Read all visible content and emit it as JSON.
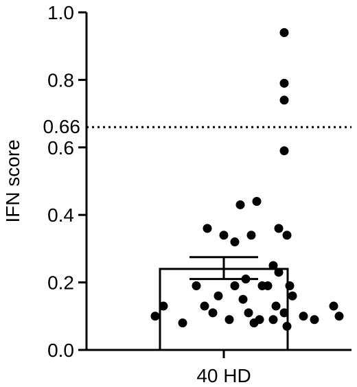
{
  "chart_data": {
    "type": "bar",
    "ylabel": "IFN score",
    "categories": [
      "40 HD"
    ],
    "ylim": [
      0,
      1.0
    ],
    "yticks": [
      "0.0",
      "0.2",
      "0.4",
      "0.6",
      "0.8",
      "1.0"
    ],
    "bar": {
      "mean": 0.24,
      "sem_low": 0.21,
      "sem_high": 0.275
    },
    "threshold": {
      "value": 0.66,
      "label": "0.66",
      "style": "dotted"
    },
    "points": [
      {
        "x": -0.25,
        "y": 0.1
      },
      {
        "x": -0.22,
        "y": 0.13
      },
      {
        "x": -0.15,
        "y": 0.08
      },
      {
        "x": -0.1,
        "y": 0.19
      },
      {
        "x": -0.07,
        "y": 0.13
      },
      {
        "x": -0.04,
        "y": 0.11
      },
      {
        "x": -0.02,
        "y": 0.16
      },
      {
        "x": 0.02,
        "y": 0.09
      },
      {
        "x": 0.04,
        "y": 0.19
      },
      {
        "x": 0.07,
        "y": 0.15
      },
      {
        "x": 0.09,
        "y": 0.11
      },
      {
        "x": 0.11,
        "y": 0.08
      },
      {
        "x": 0.14,
        "y": 0.19
      },
      {
        "x": -0.06,
        "y": 0.36
      },
      {
        "x": 0.0,
        "y": 0.34
      },
      {
        "x": 0.04,
        "y": 0.32
      },
      {
        "x": 0.06,
        "y": 0.43
      },
      {
        "x": 0.12,
        "y": 0.44
      },
      {
        "x": 0.08,
        "y": 0.21
      },
      {
        "x": 0.13,
        "y": 0.09
      },
      {
        "x": 0.1,
        "y": 0.34
      },
      {
        "x": 0.2,
        "y": 0.36
      },
      {
        "x": 0.23,
        "y": 0.34
      },
      {
        "x": 0.18,
        "y": 0.25
      },
      {
        "x": 0.2,
        "y": 0.23
      },
      {
        "x": 0.16,
        "y": 0.19
      },
      {
        "x": 0.24,
        "y": 0.19
      },
      {
        "x": 0.25,
        "y": 0.16
      },
      {
        "x": 0.19,
        "y": 0.13
      },
      {
        "x": 0.22,
        "y": 0.11
      },
      {
        "x": 0.18,
        "y": 0.09
      },
      {
        "x": 0.23,
        "y": 0.07
      },
      {
        "x": 0.29,
        "y": 0.1
      },
      {
        "x": 0.33,
        "y": 0.09
      },
      {
        "x": 0.42,
        "y": 0.1
      },
      {
        "x": 0.4,
        "y": 0.13
      },
      {
        "x": 0.22,
        "y": 0.59
      },
      {
        "x": 0.22,
        "y": 0.74
      },
      {
        "x": 0.22,
        "y": 0.79
      },
      {
        "x": 0.22,
        "y": 0.94
      }
    ],
    "colors": {
      "bar_fill": "#ffffff",
      "bar_stroke": "#000000",
      "points": "#000000",
      "axis": "#000000"
    }
  }
}
